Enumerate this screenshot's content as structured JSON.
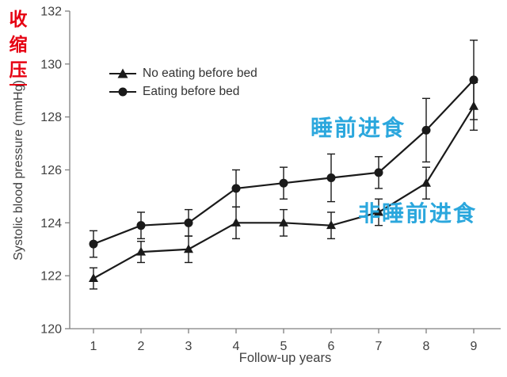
{
  "page": {
    "background": "#ffffff"
  },
  "annotations": {
    "red_vertical_label": {
      "chars": [
        "收",
        "缩",
        "压"
      ],
      "color": "#e60012"
    },
    "blue_label_eating": {
      "text": "睡前进食",
      "color": "#2ba7dd"
    },
    "blue_label_no_eating": {
      "text": "非睡前进食",
      "color": "#2ba7dd"
    }
  },
  "chart_data": {
    "type": "line",
    "title": "",
    "xlabel": "Follow-up years",
    "ylabel": "Systolic blood pressure (mmHg)",
    "ylim": [
      120,
      132
    ],
    "yticks": [
      120,
      122,
      124,
      126,
      128,
      130,
      132
    ],
    "categories": [
      1,
      2,
      3,
      4,
      5,
      6,
      7,
      8,
      9
    ],
    "grid": false,
    "legend_position": "inside-top-left",
    "axis_color": "#808080",
    "tick_text_color": "#404040",
    "series": [
      {
        "name": "No eating before bed",
        "marker": "triangle",
        "color": "#1a1a1a",
        "values": [
          121.9,
          122.9,
          123.0,
          124.0,
          124.0,
          123.9,
          124.4,
          125.5,
          128.4
        ],
        "errors": [
          0.4,
          0.4,
          0.5,
          0.6,
          0.5,
          0.5,
          0.5,
          0.6,
          0.9
        ]
      },
      {
        "name": "Eating before bed",
        "marker": "circle",
        "color": "#1a1a1a",
        "values": [
          123.2,
          123.9,
          124.0,
          125.3,
          125.5,
          125.7,
          125.9,
          127.5,
          129.4
        ],
        "errors": [
          0.5,
          0.5,
          0.5,
          0.7,
          0.6,
          0.9,
          0.6,
          1.2,
          1.5
        ]
      }
    ]
  }
}
